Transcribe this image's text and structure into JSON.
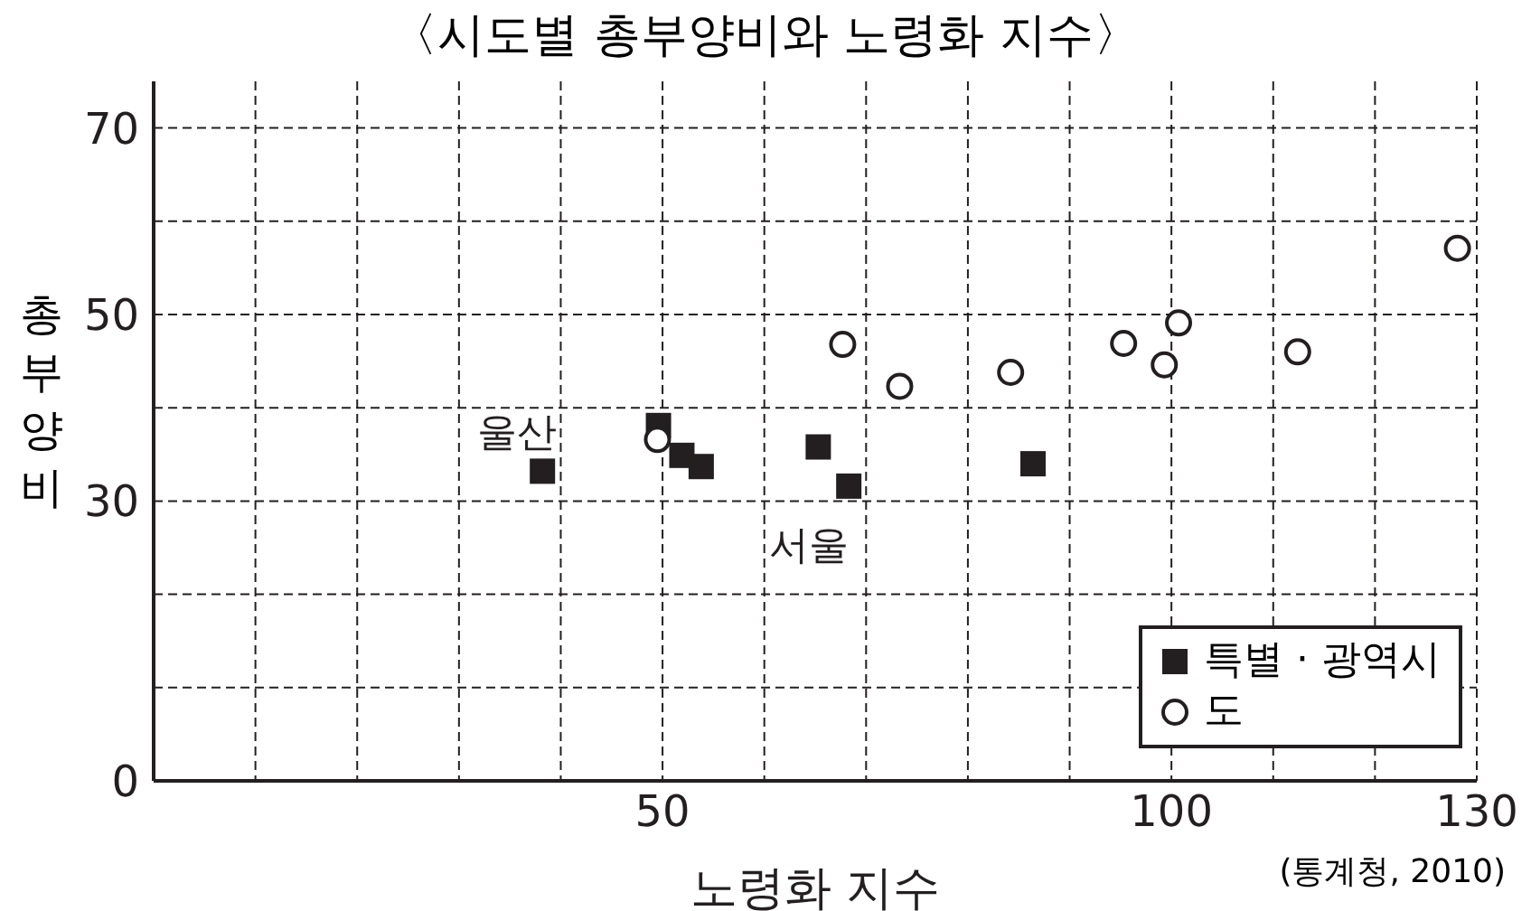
{
  "chart_data": {
    "type": "scatter",
    "title": "〈시도별 총부양비와 노령화 지수〉",
    "xlabel": "노령화 지수",
    "ylabel": "총부양비",
    "xlim": [
      0,
      130
    ],
    "ylim": [
      0,
      75
    ],
    "xticks": [
      {
        "value": 0,
        "label": null
      },
      {
        "value": 10,
        "label": null
      },
      {
        "value": 20,
        "label": null
      },
      {
        "value": 30,
        "label": null
      },
      {
        "value": 40,
        "label": null
      },
      50,
      {
        "value": 60,
        "label": null
      },
      {
        "value": 70,
        "label": null
      },
      {
        "value": 80,
        "label": null
      },
      {
        "value": 90,
        "label": null
      },
      100,
      {
        "value": 110,
        "label": null
      },
      {
        "value": 120,
        "label": null
      },
      130
    ],
    "yticks": [
      0,
      {
        "value": 10,
        "label": null
      },
      {
        "value": 20,
        "label": null
      },
      30,
      {
        "value": 40,
        "label": null
      },
      50,
      {
        "value": 60,
        "label": null
      },
      70
    ],
    "grid": true,
    "line_style": "dashed",
    "legend": "bottom right",
    "series": [
      {
        "name": "특별 · 광역시",
        "color": "#231f20",
        "marker": "square",
        "x": [
          38.2,
          49.6,
          51.9,
          53.8,
          65.3,
          68.3,
          86.4
        ],
        "values": [
          33.2,
          38.1,
          34.9,
          33.7,
          35.8,
          31.6,
          34.0
        ]
      },
      {
        "name": "도",
        "color": "#231f20",
        "marker": "circle",
        "x": [
          49.5,
          67.7,
          73.3,
          84.2,
          95.3,
          99.3,
          100.7,
          112.4,
          128.1
        ],
        "values": [
          36.6,
          46.8,
          42.3,
          43.8,
          46.9,
          44.6,
          49.1,
          46.0,
          57.1
        ]
      }
    ],
    "annotations": [
      {
        "text": "울산",
        "x": 38.2,
        "y": 33.2
      },
      {
        "text": "서울",
        "x": 68.3,
        "y": 31.6
      },
      "(통계청, 2010)"
    ]
  }
}
